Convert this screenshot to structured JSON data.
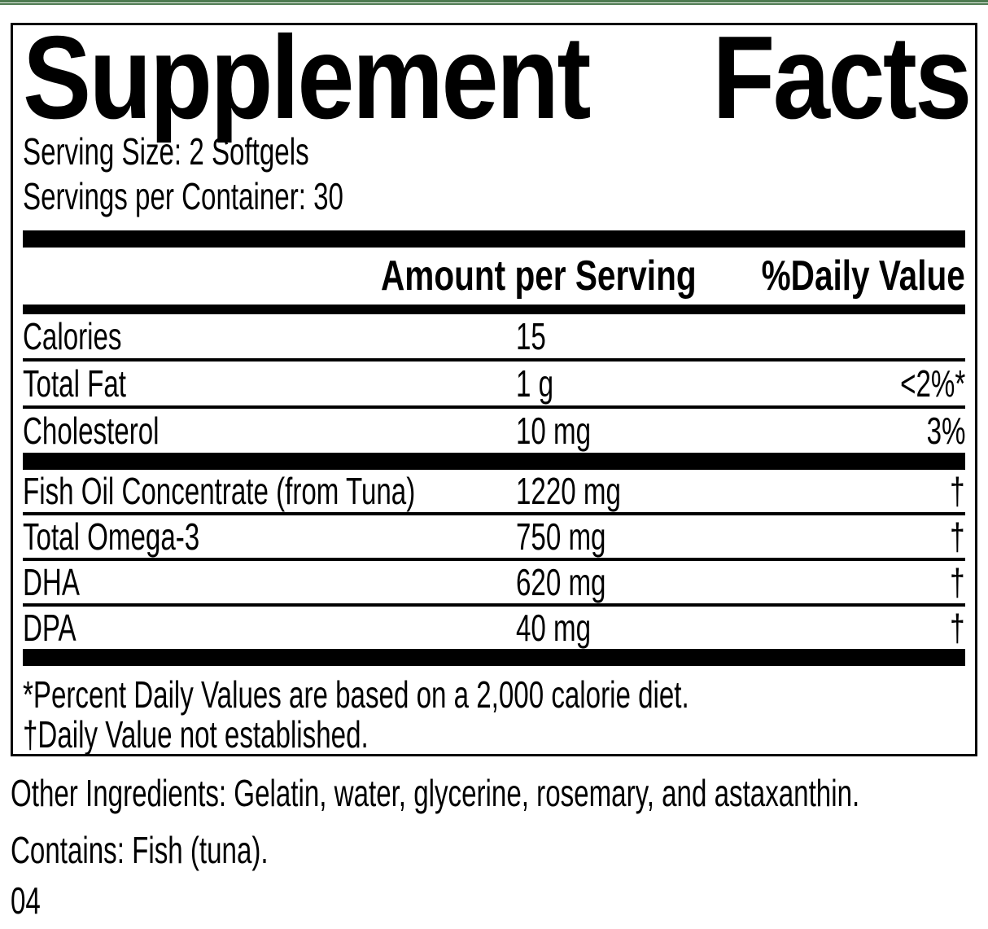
{
  "colors": {
    "strip_green": "#4d7a50",
    "strip_light": "#e4ece4",
    "text": "#000000",
    "background": "#ffffff"
  },
  "title": {
    "word_left": "Supplement",
    "word_right": "Facts"
  },
  "serving": {
    "size_line": "Serving Size: 2 Softgels",
    "per_container_line": "Servings per Container: 30"
  },
  "table": {
    "amount_header": "Amount per Serving",
    "dv_header": "%Daily Value",
    "rows_top": [
      {
        "name": "Calories",
        "amount": "15",
        "dv": ""
      },
      {
        "name": "Total Fat",
        "amount": "1 g",
        "dv": "<2%*"
      },
      {
        "name": "Cholesterol",
        "amount": "10 mg",
        "dv": "3%"
      }
    ],
    "rows_bottom": [
      {
        "name": "Fish Oil Concentrate (from Tuna)",
        "amount": "1220 mg",
        "dv": "†"
      },
      {
        "name": "Total Omega-3",
        "amount": "750 mg",
        "dv": "†"
      },
      {
        "name": "DHA",
        "amount": "620 mg",
        "dv": "†"
      },
      {
        "name": "DPA",
        "amount": "40 mg",
        "dv": "†"
      }
    ]
  },
  "footnotes": {
    "percent_note": "*Percent Daily Values are based on a 2,000 calorie diet.",
    "dagger_note": "†Daily Value not established."
  },
  "other_ingredients": "Other Ingredients: Gelatin, water, glycerine, rosemary, and astaxanthin.",
  "contains": "Contains: Fish (tuna).",
  "footer_code": "04"
}
